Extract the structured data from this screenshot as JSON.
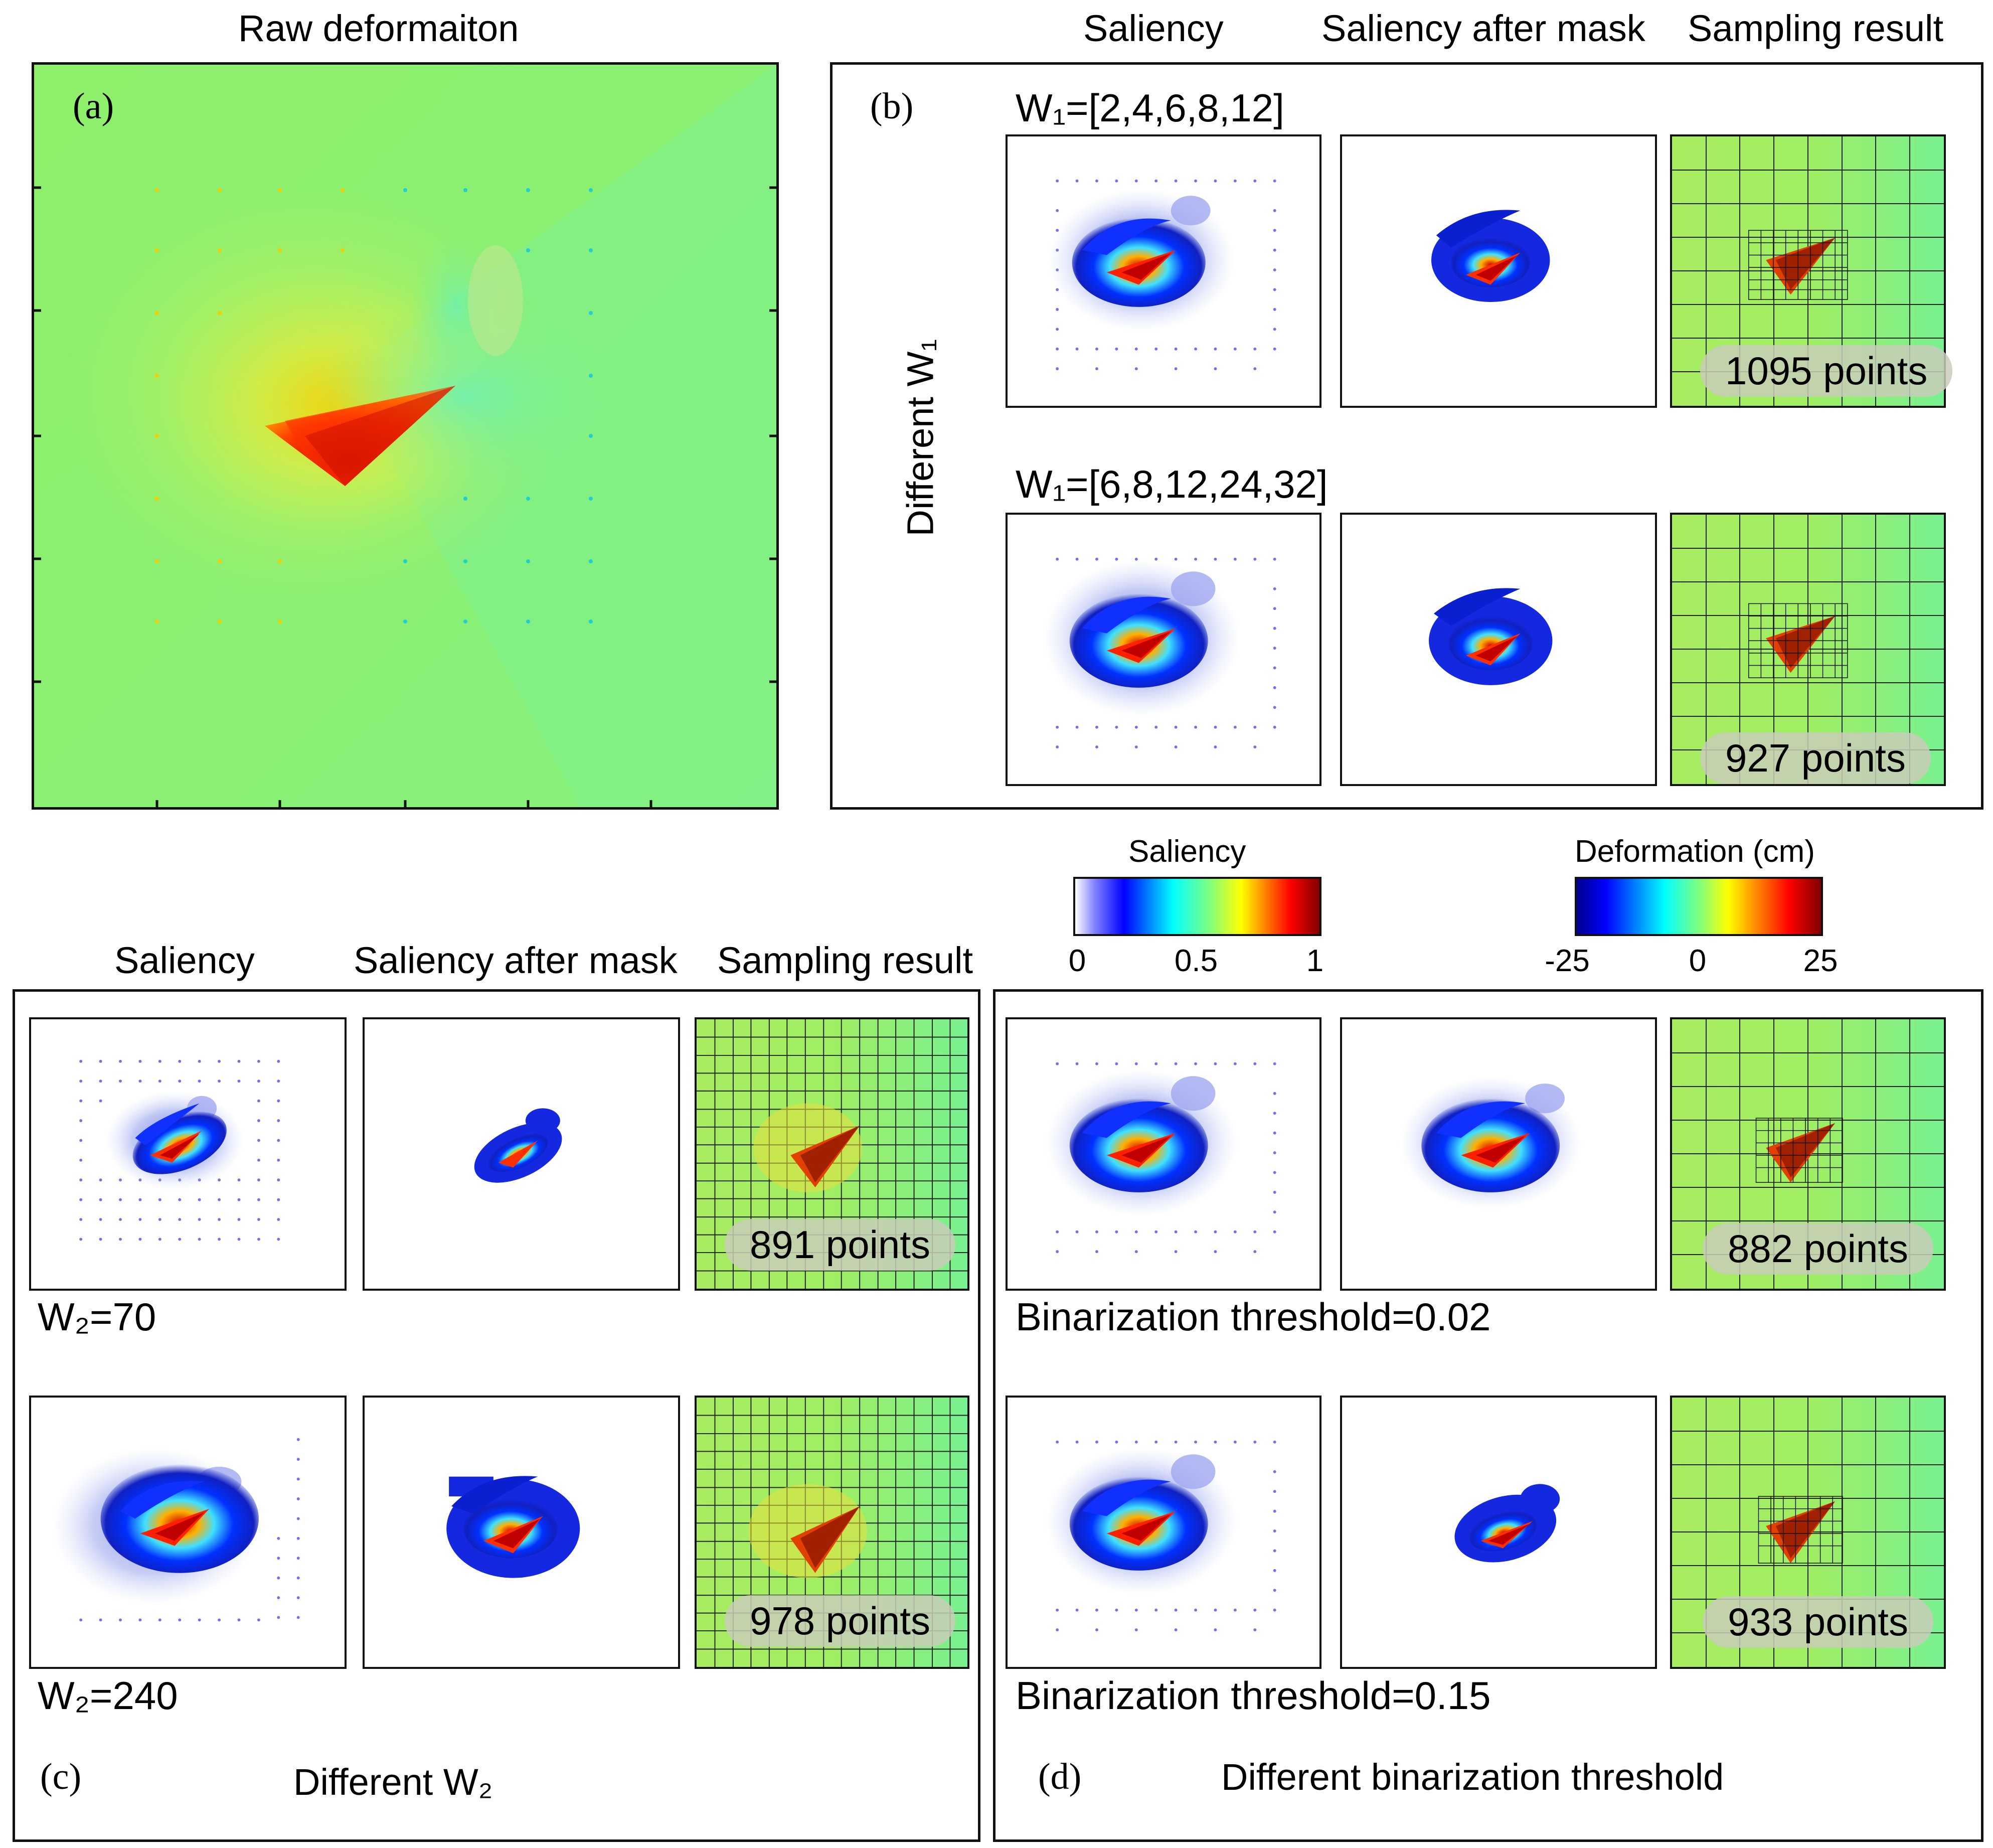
{
  "panel_a": {
    "title": "Raw deformaiton",
    "label": "(a)"
  },
  "panel_b": {
    "label": "(b)",
    "side_label": "Different W₁",
    "col_headers": [
      "Saliency",
      "Saliency after mask",
      "Sampling result"
    ],
    "rows": [
      {
        "param": "W₁=[2,4,6,8,12]",
        "points": "1095 points"
      },
      {
        "param": "W₁=[6,8,12,24,32]",
        "points": "927 points"
      }
    ]
  },
  "panel_c": {
    "label": "(c)",
    "caption": "Different W₂",
    "col_headers": [
      "Saliency",
      "Saliency after mask",
      "Sampling result"
    ],
    "rows": [
      {
        "param": "W₂=70",
        "points": "891 points"
      },
      {
        "param": "W₂=240",
        "points": "978 points"
      }
    ]
  },
  "panel_d": {
    "label": "(d)",
    "caption": "Different binarization threshold",
    "rows": [
      {
        "param": "Binarization threshold=0.02",
        "points": "882 points"
      },
      {
        "param": "Binarization threshold=0.15",
        "points": "933 points"
      }
    ]
  },
  "colorbars": {
    "saliency": {
      "title": "Saliency",
      "ticks": [
        "0",
        "0.5",
        "1"
      ]
    },
    "deformation": {
      "title": "Deformation (cm)",
      "ticks": [
        "-25",
        "0",
        "25"
      ]
    }
  },
  "colors": {
    "background_green": "#8ef06a",
    "jet_dark_blue": "#00008f",
    "jet_red": "#d11a00",
    "frame": "#111111"
  }
}
